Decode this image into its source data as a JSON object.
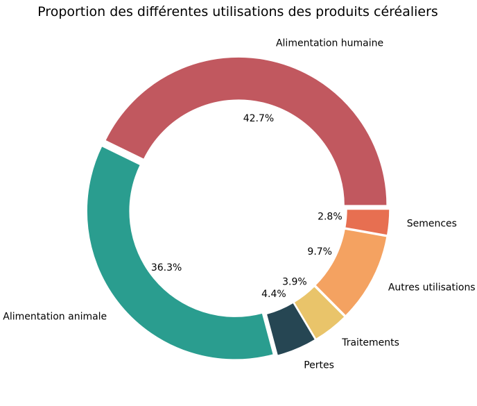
{
  "chart_data": {
    "type": "pie",
    "style": "donut",
    "title": "Proportion des différentes utilisations des produits céréaliers",
    "categories": [
      "Alimentation humaine",
      "Alimentation animale",
      "Pertes",
      "Traitements",
      "Autres utilisations",
      "Semences"
    ],
    "values": [
      42.7,
      36.3,
      4.4,
      3.9,
      9.7,
      2.8
    ],
    "percent_labels": [
      "42.7%",
      "36.3%",
      "4.4%",
      "3.9%",
      "9.7%",
      "2.8%"
    ],
    "colors": [
      "#C1585F",
      "#2A9D8F",
      "#264653",
      "#E9C46A",
      "#F4A261",
      "#E76F51"
    ],
    "start_angle_deg": 0,
    "direction": "counterclockwise",
    "legend": "none"
  }
}
